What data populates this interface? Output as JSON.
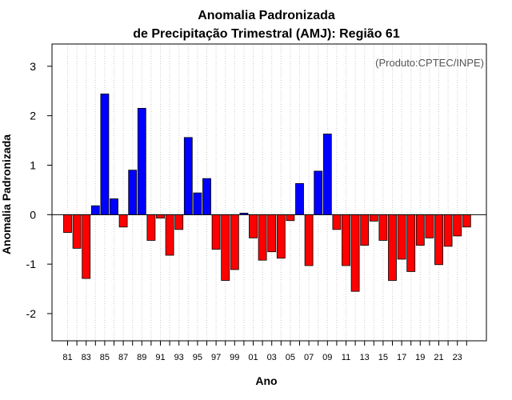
{
  "chart_data": {
    "type": "bar",
    "title": "Anomalia Padronizada",
    "subtitle": "de Precipitação Trimestral (AMJ): Região 61",
    "xlabel": "Ano",
    "ylabel": "Anomalia Padronizada",
    "annotation": "(Produto:CPTEC/INPE)",
    "ylim": [
      -2.55,
      3.45
    ],
    "yticks": [
      3,
      2,
      1,
      0,
      -1,
      -2
    ],
    "grid": "vertical-dotted",
    "colors": {
      "positive": "#0000ff",
      "negative": "#ff0000",
      "grid": "#cccccc"
    },
    "categories": [
      "1981",
      "1982",
      "1983",
      "1984",
      "1985",
      "1986",
      "1987",
      "1988",
      "1989",
      "1990",
      "1991",
      "1992",
      "1993",
      "1994",
      "1995",
      "1996",
      "1997",
      "1998",
      "1999",
      "2000",
      "2001",
      "2002",
      "2003",
      "2004",
      "2005",
      "2006",
      "2007",
      "2008",
      "2009",
      "2010",
      "2011",
      "2012",
      "2013",
      "2014",
      "2015",
      "2016",
      "2017",
      "2018",
      "2019",
      "2020",
      "2021",
      "2022",
      "2023",
      "2024"
    ],
    "xtick_labels": [
      "81",
      "83",
      "85",
      "87",
      "89",
      "91",
      "93",
      "95",
      "97",
      "99",
      "01",
      "03",
      "05",
      "07",
      "09",
      "11",
      "13",
      "15",
      "17",
      "19",
      "21",
      "23"
    ],
    "values": [
      -0.36,
      -0.68,
      -1.29,
      0.18,
      2.44,
      0.32,
      -0.25,
      0.9,
      2.15,
      -0.52,
      -0.07,
      -0.82,
      -0.3,
      1.56,
      0.44,
      0.73,
      -0.7,
      -1.33,
      -1.11,
      0.03,
      -0.47,
      -0.92,
      -0.75,
      -0.88,
      -0.12,
      0.63,
      -1.03,
      0.88,
      1.63,
      -0.3,
      -1.03,
      -1.55,
      -0.62,
      -0.13,
      -0.52,
      -1.33,
      -0.9,
      -1.15,
      -0.62,
      -0.47,
      -1.01,
      -0.64,
      -0.43,
      -0.25
    ]
  }
}
